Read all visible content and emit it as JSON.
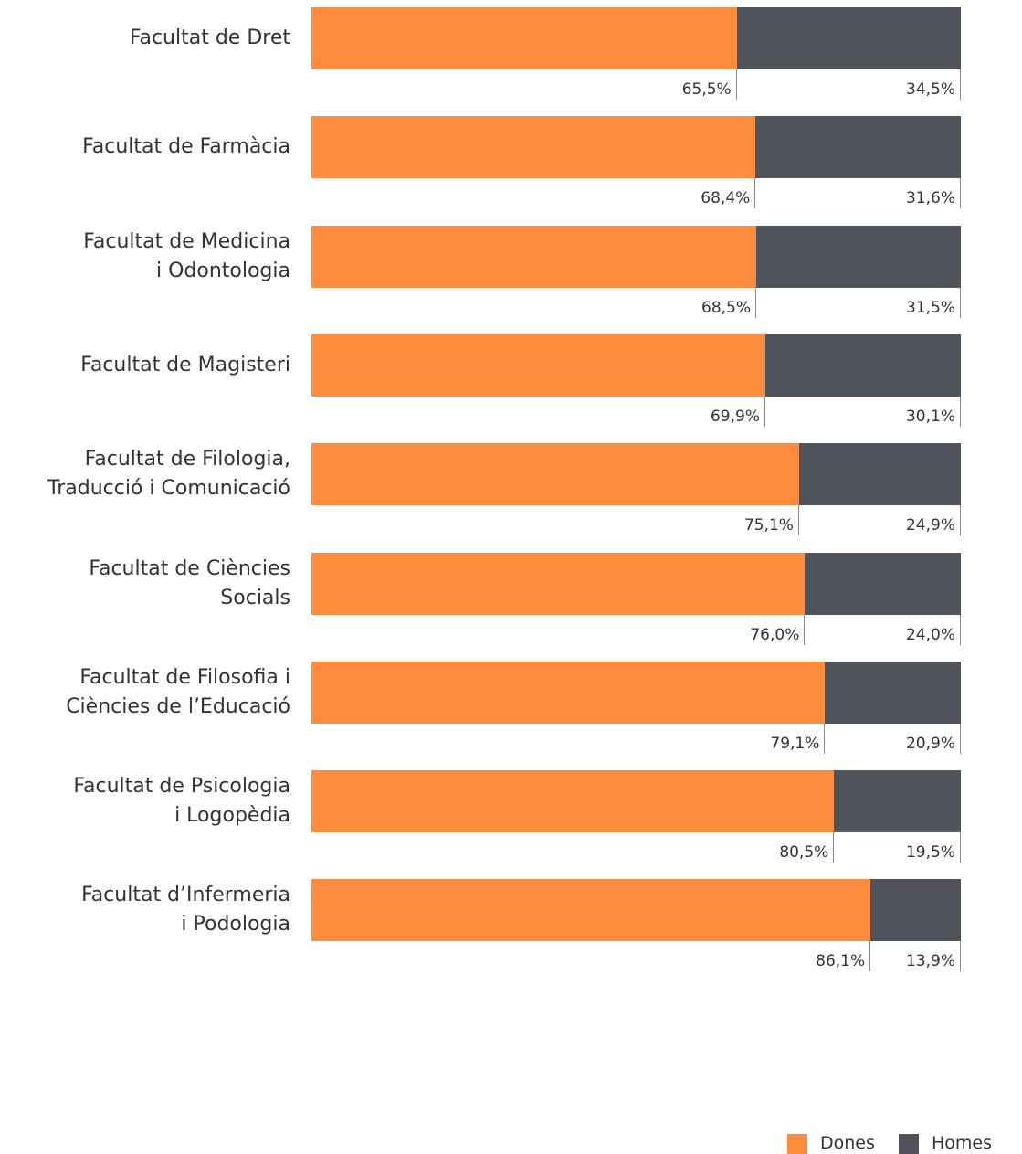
{
  "chart_data": {
    "type": "stacked-bar-horizontal",
    "categories": [
      "Facultat de Dret",
      "Facultat de Farmàcia",
      "Facultat de Medicina\ni Odontologia",
      "Facultat de Magisteri",
      "Facultat de Filologia,\nTraducció i Comunicació",
      "Facultat de Ciències\nSocials",
      "Facultat de Filosofia i\nCiències de l’Educació",
      "Facultat de Psicologia\ni Logopèdia",
      "Facultat d’Infermeria\ni Podologia"
    ],
    "series": [
      {
        "name": "Dones",
        "color": "#fd8c3c",
        "values": [
          65.5,
          68.4,
          68.5,
          69.9,
          75.1,
          76.0,
          79.1,
          80.5,
          86.1
        ],
        "value_labels": [
          "65,5%",
          "68,4%",
          "68,5%",
          "69,9%",
          "75,1%",
          "76,0%",
          "79,1%",
          "80,5%",
          "86,1%"
        ]
      },
      {
        "name": "Homes",
        "color": "#51545d",
        "values": [
          34.5,
          31.6,
          31.5,
          30.1,
          24.9,
          24.0,
          20.9,
          19.5,
          13.9
        ],
        "value_labels": [
          "34,5%",
          "31,6%",
          "31,5%",
          "30,1%",
          "24,9%",
          "24,0%",
          "20,9%",
          "19,5%",
          "13,9%"
        ]
      }
    ],
    "xlim": [
      0,
      100
    ]
  }
}
